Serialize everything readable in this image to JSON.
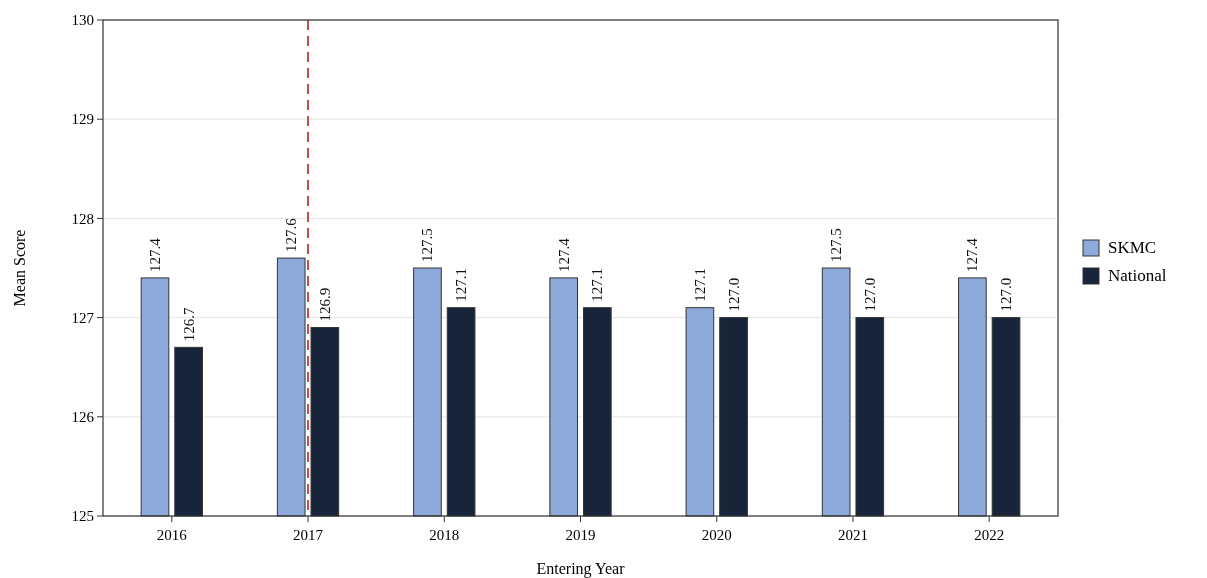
{
  "chart_data": {
    "type": "bar",
    "xlabel": "Entering Year",
    "ylabel": "Mean Score",
    "categories": [
      "2016",
      "2017",
      "2018",
      "2019",
      "2020",
      "2021",
      "2022"
    ],
    "series": [
      {
        "name": "SKMC",
        "color": "#8eaadb",
        "values": [
          127.4,
          127.6,
          127.5,
          127.4,
          127.1,
          127.5,
          127.4
        ],
        "value_labels": [
          "127.4",
          "127.6",
          "127.5",
          "127.4",
          "127.1",
          "127.5",
          "127.4"
        ]
      },
      {
        "name": "National",
        "color": "#17243a",
        "values": [
          126.7,
          126.9,
          127.1,
          127.1,
          127.0,
          127.0,
          127.0
        ],
        "value_labels": [
          "126.7",
          "126.9",
          "127.1",
          "127.1",
          "127.0",
          "127.0",
          "127.0"
        ]
      }
    ],
    "ylim": [
      125,
      130
    ],
    "yticks": [
      125,
      126,
      127,
      128,
      129,
      130
    ],
    "grid": "y",
    "legend": "right",
    "ref_lines": [
      {
        "axis": "x",
        "value": "2017",
        "color": "#c0504d",
        "line_style": "dashed"
      }
    ]
  }
}
